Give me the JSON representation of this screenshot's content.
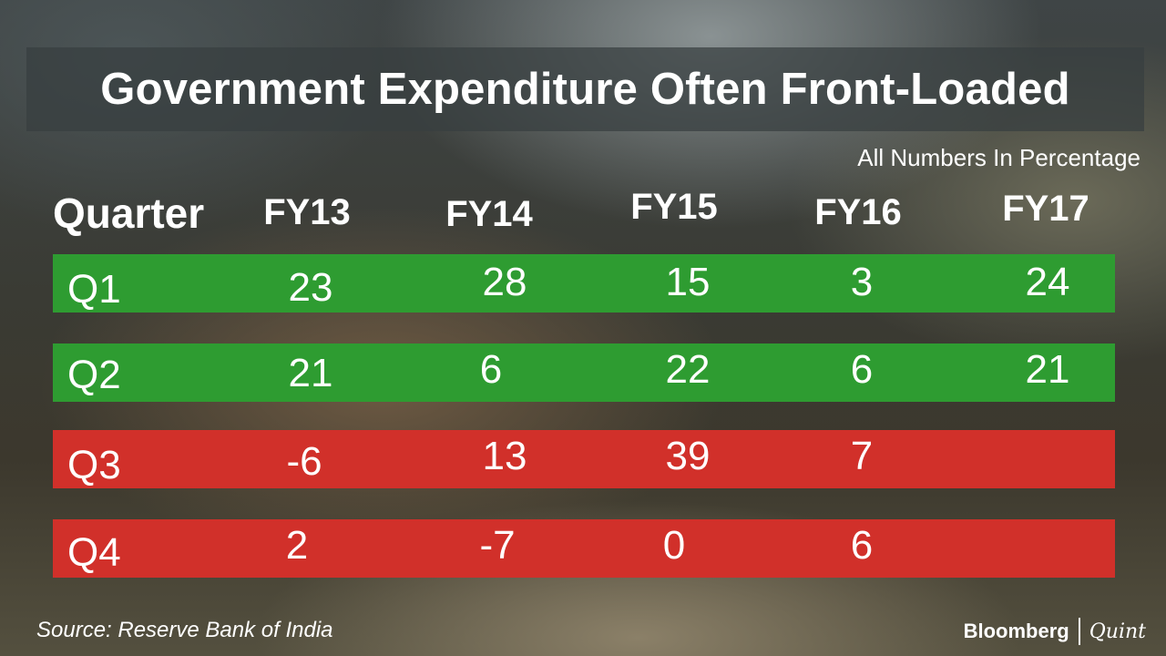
{
  "chart_data": {
    "type": "table",
    "title": "Government Expenditure Often Front-Loaded",
    "subtitle": "All Numbers In Percentage",
    "columns": [
      "Quarter",
      "FY13",
      "FY14",
      "FY15",
      "FY16",
      "FY17"
    ],
    "rows": [
      {
        "label": "Q1",
        "values": [
          "23",
          "28",
          "15",
          "3",
          "24"
        ],
        "status": "positive",
        "color": "#2e9c31"
      },
      {
        "label": "Q2",
        "values": [
          "21",
          "6",
          "22",
          "6",
          "21"
        ],
        "status": "positive",
        "color": "#2e9c31"
      },
      {
        "label": "Q3",
        "values": [
          "-6",
          "13",
          "39",
          "7",
          ""
        ],
        "status": "negative",
        "color": "#d1302a"
      },
      {
        "label": "Q4",
        "values": [
          "2",
          "-7",
          "0",
          "6",
          ""
        ],
        "status": "negative",
        "color": "#d1302a"
      }
    ]
  },
  "footer": {
    "source": "Source: Reserve Bank of India",
    "brand_primary": "Bloomberg",
    "brand_secondary": "Quint"
  }
}
